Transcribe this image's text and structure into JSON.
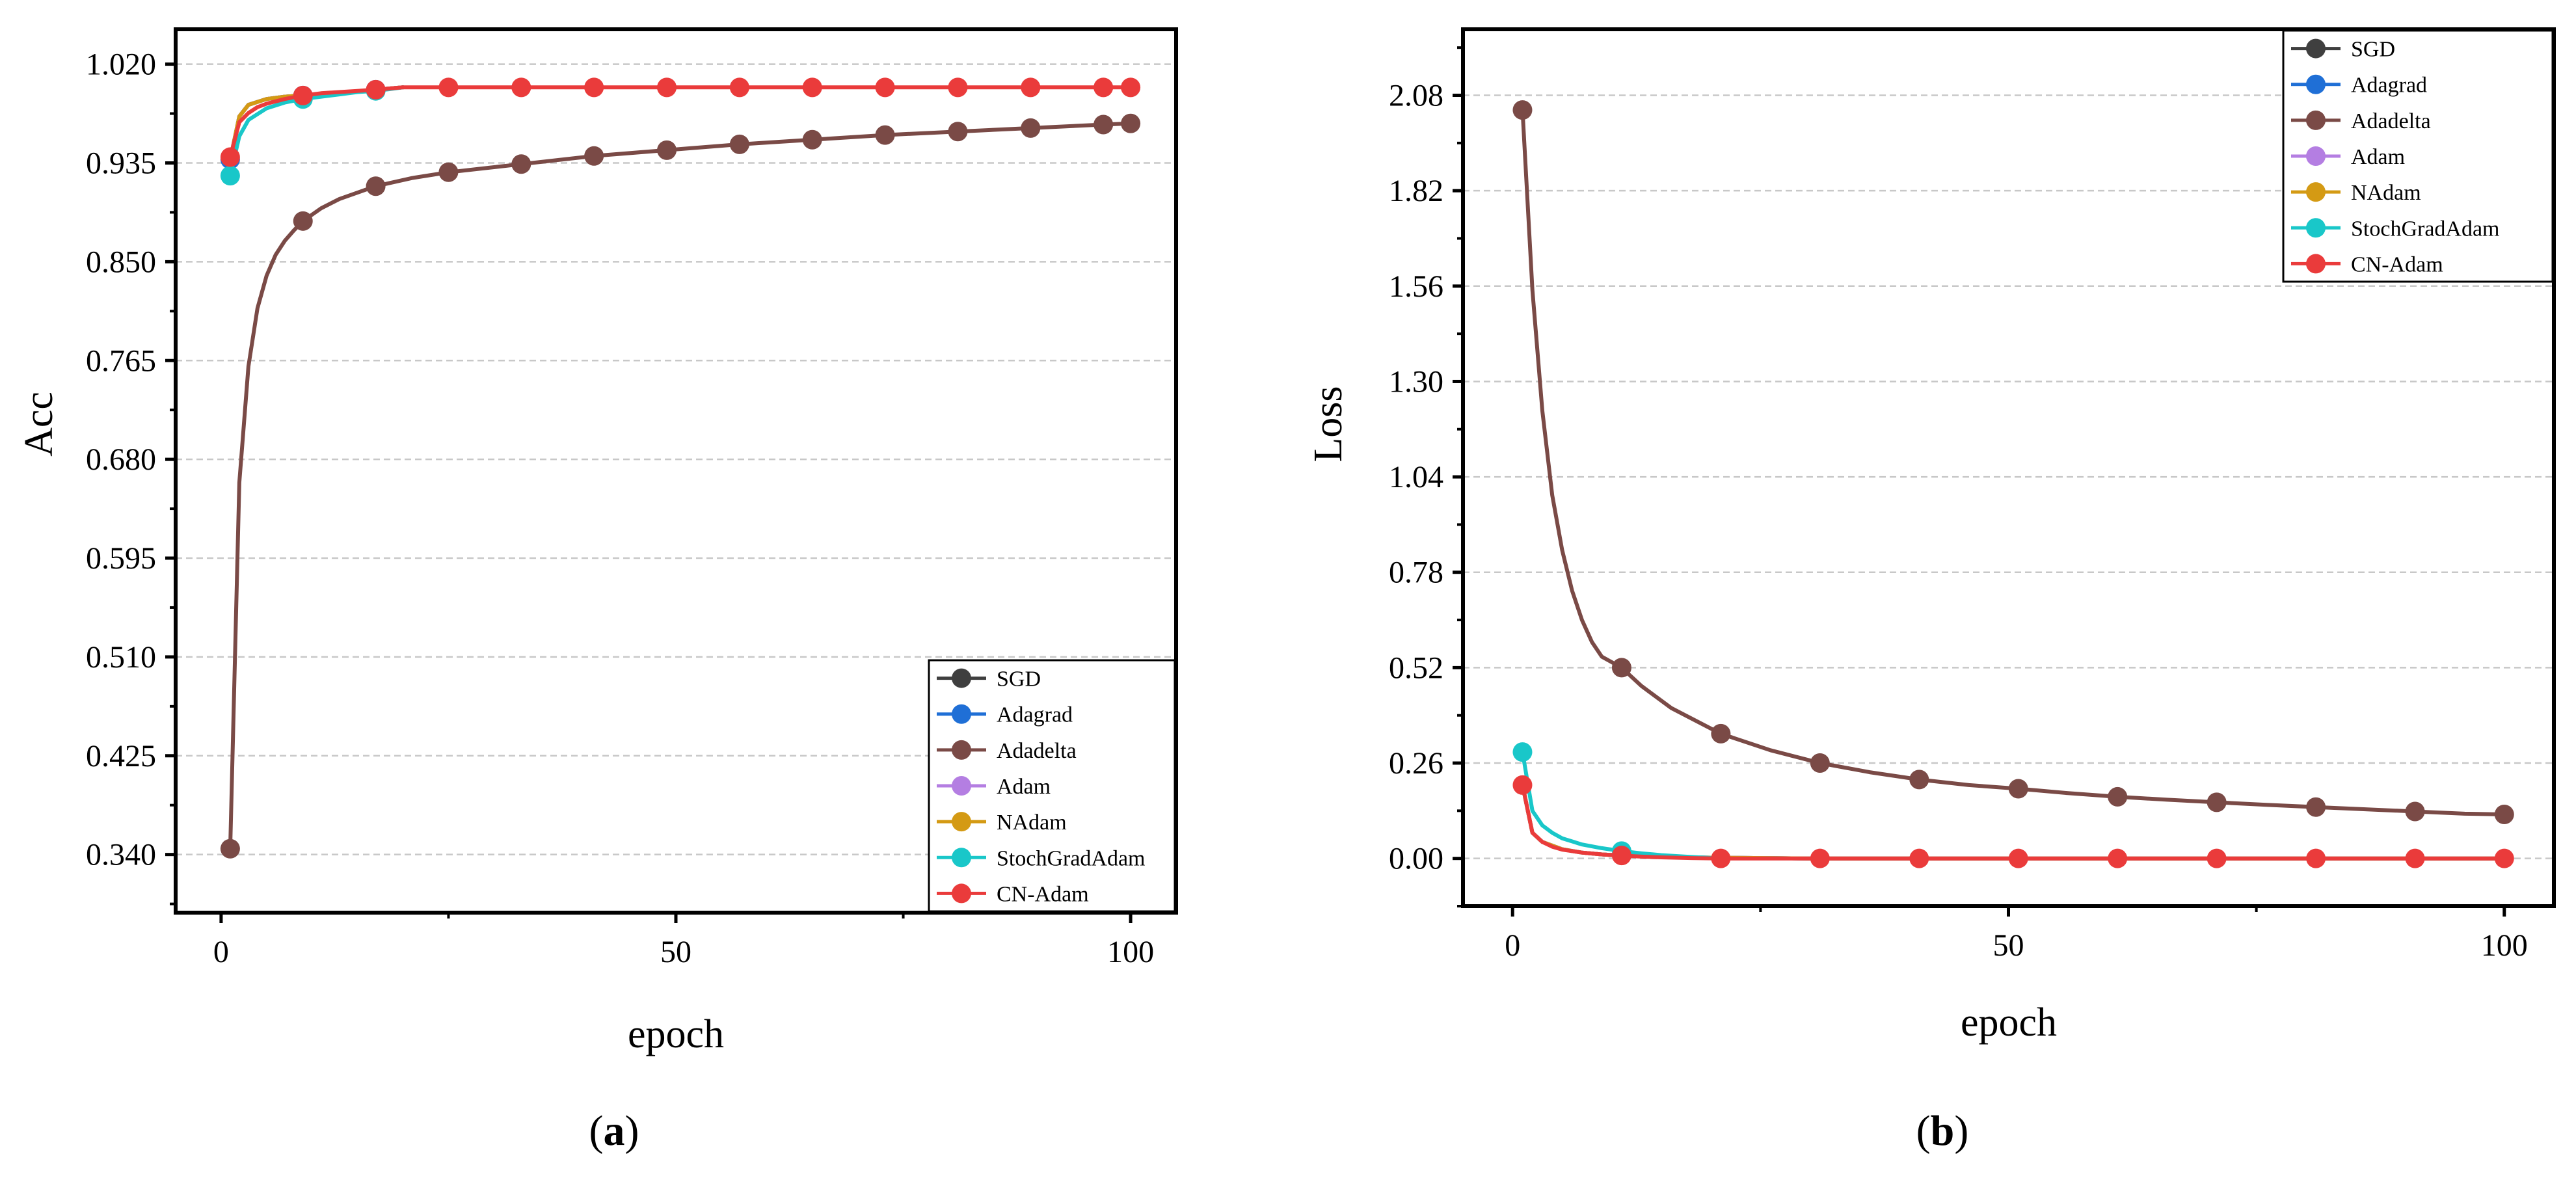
{
  "colors": {
    "SGD": "#3f3f3f",
    "Adagrad": "#1f6fd6",
    "Adadelta": "#7a4a46",
    "Adam": "#b47ee2",
    "NAdam": "#d49a14",
    "StochGradAdam": "#19c7c9",
    "CN-Adam": "#ea3b3b"
  },
  "panels": [
    {
      "paren_open": "(",
      "letter": "a",
      "paren_close": ")"
    },
    {
      "paren_open": "(",
      "letter": "b",
      "paren_close": ")"
    }
  ],
  "chart_data": [
    {
      "type": "line",
      "title": "",
      "xlabel": "epoch",
      "ylabel": "Acc",
      "xlim": [
        -5,
        105
      ],
      "ylim": [
        0.29,
        1.05
      ],
      "xticks": [
        0,
        50,
        100
      ],
      "x_tick_labels": [
        "0",
        "50",
        "100"
      ],
      "yticks": [
        0.34,
        0.425,
        0.51,
        0.595,
        0.68,
        0.765,
        0.85,
        0.935,
        1.02
      ],
      "y_tick_labels": [
        "0.340",
        "0.425",
        "0.510",
        "0.595",
        "0.680",
        "0.765",
        "0.850",
        "0.935",
        "1.020"
      ],
      "grid": true,
      "legend": {
        "position": "bottom-right",
        "entries": [
          "SGD",
          "Adagrad",
          "Adadelta",
          "Adam",
          "NAdam",
          "StochGradAdam",
          "CN-Adam"
        ]
      },
      "series": [
        {
          "name": "SGD",
          "x": [
            1,
            2,
            3,
            5,
            7,
            9,
            13,
            17,
            20
          ],
          "y": [
            0.938,
            0.975,
            0.985,
            0.99,
            0.992,
            0.993,
            0.995,
            0.998,
            1.0
          ]
        },
        {
          "name": "Adagrad",
          "x": [
            1,
            2,
            3,
            5,
            7,
            9,
            13,
            17,
            20
          ],
          "y": [
            0.938,
            0.975,
            0.985,
            0.99,
            0.992,
            0.993,
            0.995,
            0.998,
            1.0
          ],
          "markers_x": [
            1,
            9,
            17
          ]
        },
        {
          "name": "Adam",
          "x": [
            1,
            2,
            3,
            5,
            7,
            9,
            13,
            17,
            20
          ],
          "y": [
            0.938,
            0.975,
            0.985,
            0.99,
            0.992,
            0.993,
            0.995,
            0.998,
            1.0
          ]
        },
        {
          "name": "NAdam",
          "x": [
            1,
            2,
            3,
            5,
            7,
            9,
            13,
            17,
            20
          ],
          "y": [
            0.938,
            0.975,
            0.985,
            0.99,
            0.992,
            0.993,
            0.995,
            0.998,
            1.0
          ]
        },
        {
          "name": "StochGradAdam",
          "x": [
            1,
            2,
            3,
            5,
            7,
            9,
            11,
            13,
            15,
            17,
            19,
            20
          ],
          "y": [
            0.924,
            0.958,
            0.972,
            0.982,
            0.987,
            0.99,
            0.992,
            0.994,
            0.996,
            0.997,
            0.999,
            1.0
          ],
          "markers_x": [
            1,
            9,
            17
          ]
        },
        {
          "name": "Adadelta",
          "x": [
            1,
            2,
            3,
            4,
            5,
            6,
            7,
            8,
            9,
            11,
            13,
            17,
            21,
            25,
            33,
            41,
            49,
            57,
            65,
            73,
            81,
            89,
            97,
            100
          ],
          "y": [
            0.345,
            0.66,
            0.76,
            0.81,
            0.838,
            0.856,
            0.868,
            0.877,
            0.885,
            0.896,
            0.904,
            0.915,
            0.922,
            0.927,
            0.934,
            0.941,
            0.946,
            0.951,
            0.955,
            0.959,
            0.962,
            0.965,
            0.968,
            0.969
          ],
          "markers_x": [
            1,
            9,
            17,
            25,
            33,
            41,
            49,
            57,
            65,
            73,
            81,
            89,
            97,
            100
          ]
        },
        {
          "name": "CN-Adam",
          "x": [
            1,
            2,
            3,
            4,
            5,
            6,
            7,
            9,
            11,
            13,
            15,
            17,
            20,
            25,
            33,
            41,
            49,
            57,
            65,
            73,
            81,
            89,
            97,
            100
          ],
          "y": [
            0.94,
            0.97,
            0.978,
            0.983,
            0.986,
            0.988,
            0.99,
            0.993,
            0.995,
            0.996,
            0.997,
            0.998,
            1.0,
            1.0,
            1.0,
            1.0,
            1.0,
            1.0,
            1.0,
            1.0,
            1.0,
            1.0,
            1.0,
            1.0
          ],
          "markers_x": [
            1,
            9,
            17,
            25,
            33,
            41,
            49,
            57,
            65,
            73,
            81,
            89,
            97,
            100
          ]
        }
      ]
    },
    {
      "type": "line",
      "title": "",
      "xlabel": "epoch",
      "ylabel": "Loss",
      "xlim": [
        -5,
        105
      ],
      "ylim": [
        -0.13,
        2.26
      ],
      "xticks": [
        0,
        50,
        100
      ],
      "x_tick_labels": [
        "0",
        "50",
        "100"
      ],
      "yticks": [
        0.0,
        0.26,
        0.52,
        0.78,
        1.04,
        1.3,
        1.56,
        1.82,
        2.08
      ],
      "y_tick_labels": [
        "0.00",
        "0.26",
        "0.52",
        "0.78",
        "1.04",
        "1.30",
        "1.56",
        "1.82",
        "2.08"
      ],
      "grid": true,
      "legend": {
        "position": "top-right",
        "entries": [
          "SGD",
          "Adagrad",
          "Adadelta",
          "Adam",
          "NAdam",
          "StochGradAdam",
          "CN-Adam"
        ]
      },
      "series": [
        {
          "name": "SGD",
          "x": [
            1,
            2,
            3,
            5,
            7,
            9,
            11,
            15,
            20,
            30,
            40,
            50,
            60,
            70,
            80,
            90,
            100
          ],
          "y": [
            0.2,
            0.07,
            0.045,
            0.025,
            0.016,
            0.011,
            0.008,
            0.004,
            0.002,
            0.0,
            0.0,
            0.0,
            0.0,
            0.0,
            0.0,
            0.0,
            0.0
          ]
        },
        {
          "name": "Adagrad",
          "x": [
            1,
            2,
            3,
            5,
            7,
            9,
            11,
            15,
            20,
            30,
            40,
            50,
            60,
            70,
            80,
            90,
            100
          ],
          "y": [
            0.2,
            0.07,
            0.045,
            0.025,
            0.016,
            0.011,
            0.008,
            0.004,
            0.002,
            0.0,
            0.0,
            0.0,
            0.0,
            0.0,
            0.0,
            0.0,
            0.0
          ]
        },
        {
          "name": "Adam",
          "x": [
            1,
            2,
            3,
            5,
            7,
            9,
            11,
            15,
            20,
            30,
            40,
            50,
            60,
            70,
            80,
            90,
            100
          ],
          "y": [
            0.2,
            0.07,
            0.045,
            0.025,
            0.016,
            0.011,
            0.008,
            0.004,
            0.002,
            0.0,
            0.0,
            0.0,
            0.0,
            0.0,
            0.0,
            0.0,
            0.0
          ]
        },
        {
          "name": "NAdam",
          "x": [
            1,
            2,
            3,
            5,
            7,
            9,
            11,
            15,
            20,
            30,
            40,
            50,
            60,
            70,
            80,
            90,
            100
          ],
          "y": [
            0.2,
            0.07,
            0.045,
            0.025,
            0.016,
            0.011,
            0.008,
            0.004,
            0.002,
            0.0,
            0.0,
            0.0,
            0.0,
            0.0,
            0.0,
            0.0,
            0.0
          ]
        },
        {
          "name": "StochGradAdam",
          "x": [
            1,
            2,
            3,
            4,
            5,
            7,
            9,
            11,
            13,
            15,
            18,
            21
          ],
          "y": [
            0.29,
            0.13,
            0.09,
            0.07,
            0.055,
            0.038,
            0.028,
            0.02,
            0.014,
            0.009,
            0.004,
            0.0
          ],
          "markers_x": [
            1,
            11
          ]
        },
        {
          "name": "Adadelta",
          "x": [
            1,
            2,
            3,
            4,
            5,
            6,
            7,
            8,
            9,
            11,
            13,
            16,
            21,
            26,
            31,
            36,
            41,
            46,
            51,
            56,
            61,
            66,
            71,
            76,
            81,
            86,
            91,
            96,
            100
          ],
          "y": [
            2.04,
            1.55,
            1.22,
            0.99,
            0.84,
            0.73,
            0.65,
            0.59,
            0.55,
            0.52,
            0.47,
            0.41,
            0.34,
            0.295,
            0.26,
            0.235,
            0.215,
            0.2,
            0.19,
            0.178,
            0.168,
            0.16,
            0.153,
            0.146,
            0.14,
            0.134,
            0.128,
            0.122,
            0.12
          ],
          "markers_x": [
            1,
            11,
            21,
            31,
            41,
            51,
            61,
            71,
            81,
            91,
            100
          ]
        },
        {
          "name": "CN-Adam",
          "x": [
            1,
            2,
            3,
            4,
            5,
            7,
            9,
            11,
            13,
            15,
            18,
            21,
            31,
            41,
            51,
            61,
            71,
            81,
            91,
            100
          ],
          "y": [
            0.2,
            0.07,
            0.045,
            0.032,
            0.024,
            0.016,
            0.011,
            0.008,
            0.005,
            0.003,
            0.001,
            0.0,
            0.0,
            0.0,
            0.0,
            0.0,
            0.0,
            0.0,
            0.0,
            0.0
          ],
          "markers_x": [
            1,
            11,
            21,
            31,
            41,
            51,
            61,
            71,
            81,
            91,
            100
          ]
        }
      ]
    }
  ]
}
